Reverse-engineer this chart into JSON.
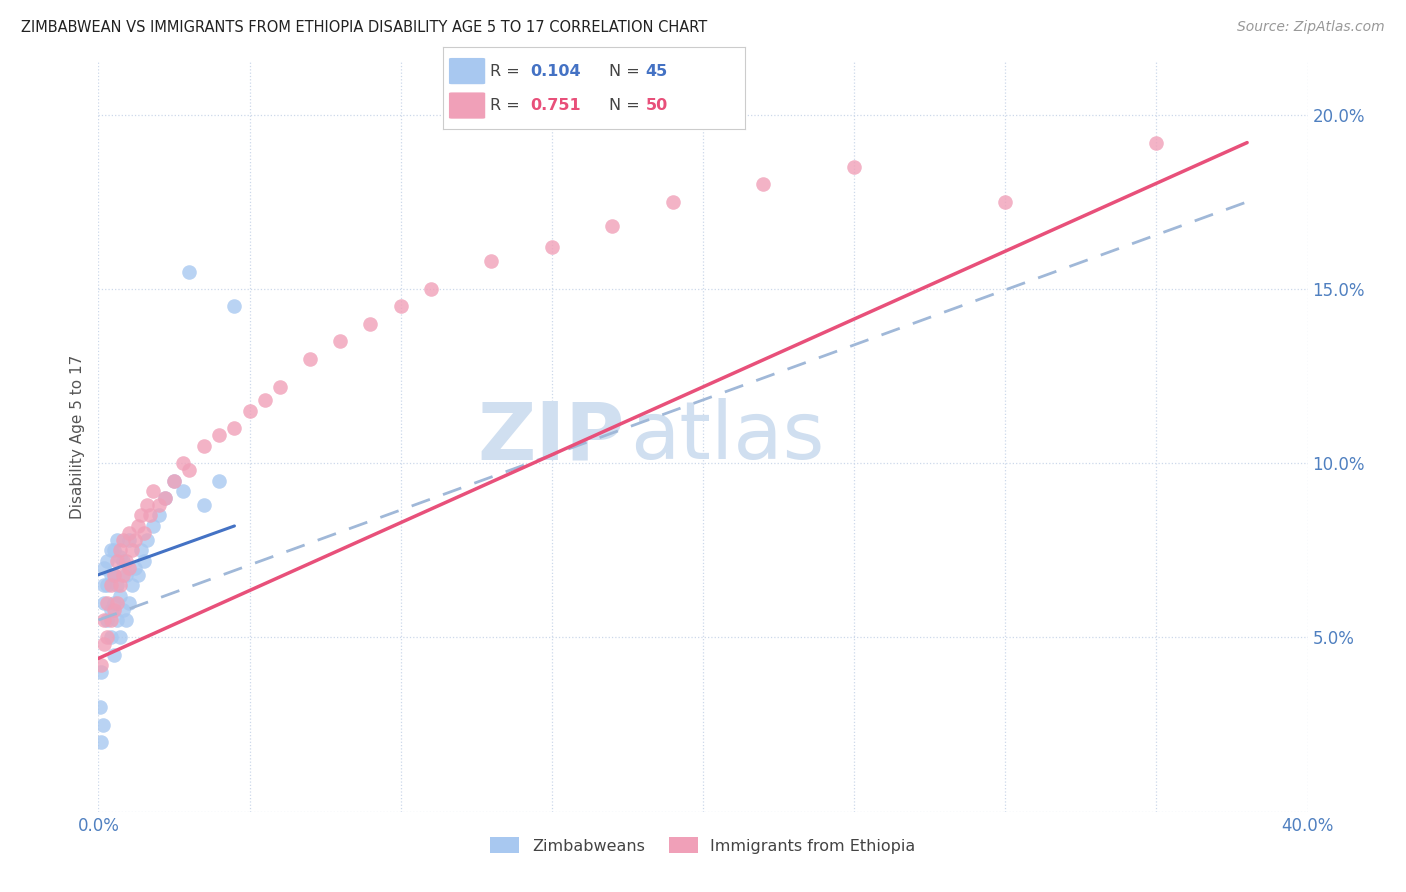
{
  "title": "ZIMBABWEAN VS IMMIGRANTS FROM ETHIOPIA DISABILITY AGE 5 TO 17 CORRELATION CHART",
  "source": "Source: ZipAtlas.com",
  "ylabel": "Disability Age 5 to 17",
  "xlim": [
    0.0,
    0.4
  ],
  "ylim": [
    0.0,
    0.215
  ],
  "blue_color": "#a8c8f0",
  "pink_color": "#f0a0b8",
  "blue_line_color": "#4472c4",
  "pink_line_color": "#e8507a",
  "dashed_line_color": "#a0b8d8",
  "watermark_color": "#d0dff0",
  "zim_x": [
    0.0005,
    0.001,
    0.001,
    0.0015,
    0.002,
    0.002,
    0.002,
    0.003,
    0.003,
    0.003,
    0.004,
    0.004,
    0.004,
    0.004,
    0.005,
    0.005,
    0.005,
    0.005,
    0.006,
    0.006,
    0.006,
    0.007,
    0.007,
    0.007,
    0.008,
    0.008,
    0.009,
    0.009,
    0.01,
    0.01,
    0.011,
    0.012,
    0.013,
    0.014,
    0.015,
    0.016,
    0.018,
    0.02,
    0.022,
    0.025,
    0.028,
    0.03,
    0.035,
    0.04,
    0.045
  ],
  "zim_y": [
    0.03,
    0.02,
    0.04,
    0.025,
    0.06,
    0.065,
    0.07,
    0.055,
    0.065,
    0.072,
    0.05,
    0.058,
    0.068,
    0.075,
    0.045,
    0.06,
    0.068,
    0.075,
    0.055,
    0.065,
    0.078,
    0.05,
    0.062,
    0.073,
    0.058,
    0.072,
    0.055,
    0.068,
    0.06,
    0.078,
    0.065,
    0.07,
    0.068,
    0.075,
    0.072,
    0.078,
    0.082,
    0.085,
    0.09,
    0.095,
    0.092,
    0.155,
    0.088,
    0.095,
    0.145
  ],
  "eth_x": [
    0.001,
    0.002,
    0.002,
    0.003,
    0.003,
    0.004,
    0.004,
    0.005,
    0.005,
    0.006,
    0.006,
    0.007,
    0.007,
    0.008,
    0.008,
    0.009,
    0.01,
    0.01,
    0.011,
    0.012,
    0.013,
    0.014,
    0.015,
    0.016,
    0.017,
    0.018,
    0.02,
    0.022,
    0.025,
    0.028,
    0.03,
    0.035,
    0.04,
    0.045,
    0.05,
    0.055,
    0.06,
    0.07,
    0.08,
    0.09,
    0.1,
    0.11,
    0.13,
    0.15,
    0.17,
    0.19,
    0.22,
    0.25,
    0.3,
    0.35
  ],
  "eth_y": [
    0.042,
    0.048,
    0.055,
    0.05,
    0.06,
    0.055,
    0.065,
    0.058,
    0.068,
    0.06,
    0.072,
    0.065,
    0.075,
    0.068,
    0.078,
    0.072,
    0.07,
    0.08,
    0.075,
    0.078,
    0.082,
    0.085,
    0.08,
    0.088,
    0.085,
    0.092,
    0.088,
    0.09,
    0.095,
    0.1,
    0.098,
    0.105,
    0.108,
    0.11,
    0.115,
    0.118,
    0.122,
    0.13,
    0.135,
    0.14,
    0.145,
    0.15,
    0.158,
    0.162,
    0.168,
    0.175,
    0.18,
    0.185,
    0.175,
    0.192
  ],
  "zim_line": [
    0.068,
    0.082
  ],
  "zim_line_x": [
    0.0,
    0.045
  ],
  "eth_line": [
    0.044,
    0.192
  ],
  "eth_line_x": [
    0.0,
    0.38
  ],
  "dash_line": [
    0.055,
    0.175
  ],
  "dash_line_x": [
    0.0,
    0.38
  ]
}
